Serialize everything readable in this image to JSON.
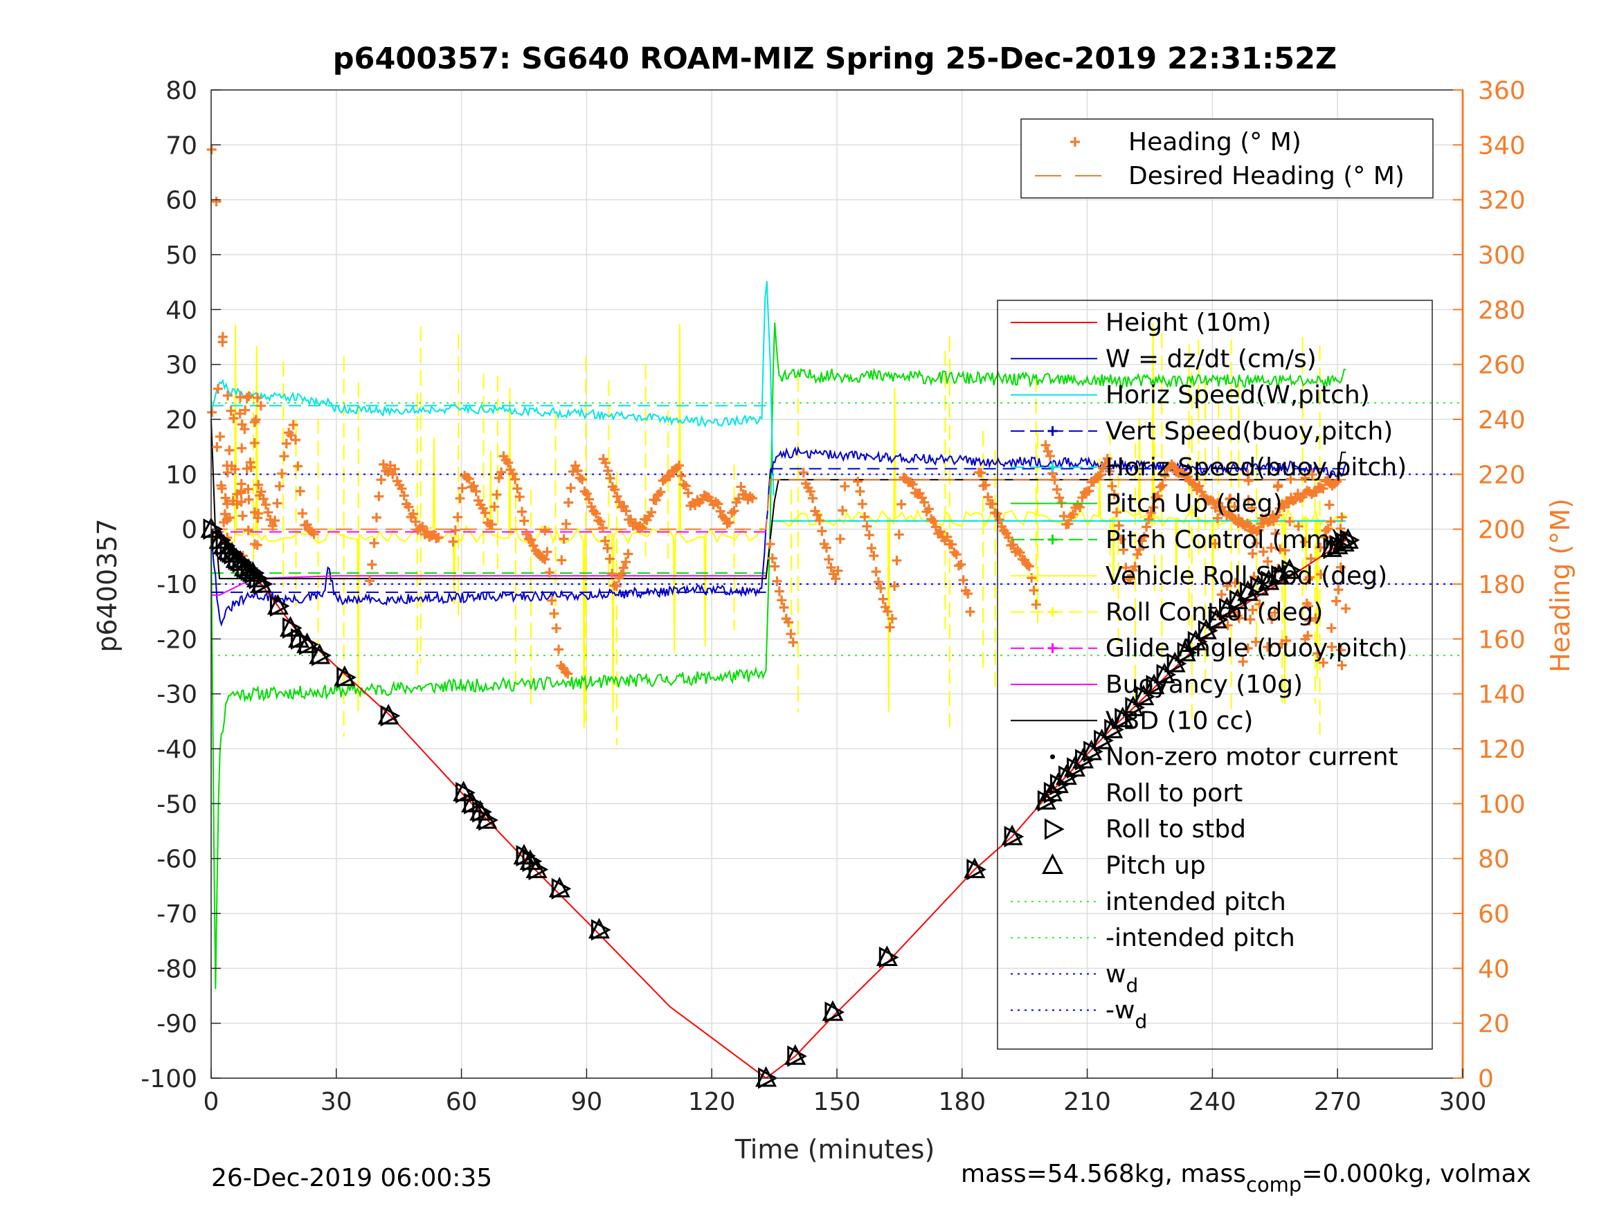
{
  "chart_data": {
    "type": "line",
    "title": "p6400357: SG640 ROAM-MIZ Spring 25-Dec-2019 22:31:52Z",
    "xlabel": "Time (minutes)",
    "ylabel_left": "p6400357",
    "ylabel_right": "Heading (°M)",
    "xlim": [
      0,
      300
    ],
    "ylim_left": [
      -100,
      80
    ],
    "ylim_right": [
      0,
      360
    ],
    "xticks": [
      0,
      30,
      60,
      90,
      120,
      150,
      180,
      210,
      240,
      270,
      300
    ],
    "yticks_left": [
      -100,
      -90,
      -80,
      -70,
      -60,
      -50,
      -40,
      -30,
      -20,
      -10,
      0,
      10,
      20,
      30,
      40,
      50,
      60,
      70,
      80
    ],
    "yticks_right": [
      0,
      20,
      40,
      60,
      80,
      100,
      120,
      140,
      160,
      180,
      200,
      220,
      240,
      260,
      280,
      300,
      320,
      340,
      360
    ],
    "grid": true,
    "footer_left": "26-Dec-2019 06:00:35",
    "footer_right": "mass=54.568kg, mass",
    "footer_right_sub": "comp",
    "footer_right_tail": "=0.000kg, volmax",
    "legend_heading": {
      "placement": "top-right",
      "entries": [
        "Heading (° M)",
        "Desired Heading (° M)"
      ]
    },
    "legend_main": {
      "placement": "right",
      "entries": [
        "Height (10m)",
        "W = dz/dt (cm/s)",
        "Horiz Speed(W,pitch)",
        "Vert Speed(buoy,pitch)",
        "Horiz Speed(buoy,pitch)",
        "Pitch Up (deg)",
        "Pitch Control (mm)",
        "Vehicle Roll Stbd (deg)",
        "Roll Control (deg)",
        "Glide Angle (buoy,pitch)",
        "Buoyancy (10g)",
        "VBD (10 cc)",
        "Non-zero motor current",
        "Roll to port",
        "Roll to stbd",
        "Pitch up",
        "intended pitch",
        "-intended pitch",
        "w",
        "-w"
      ],
      "subscript_d": "d"
    },
    "colors": {
      "height": "#ff0000",
      "w": "#0000cc",
      "horiz_w": "#00e5e5",
      "vert_buoy": "#0000cc",
      "horiz_buoy": "#00e5e5",
      "pitch": "#00dd00",
      "pitch_ctrl": "#00dd00",
      "roll": "#ffff00",
      "roll_ctrl": "#ffff00",
      "glide": "#ff00ff",
      "buoyancy": "#ff00ff",
      "vbd": "#000000",
      "heading": "#f57c2a",
      "intended_pitch": "#33ee33",
      "wd": "#0000ff"
    },
    "series": [
      {
        "name": "Height (10m)",
        "x": [
          0,
          5,
          12,
          20,
          30,
          43,
          60,
          75,
          92,
          110,
          133,
          140,
          150,
          162,
          183,
          192,
          200,
          215,
          230,
          245,
          260,
          272
        ],
        "y": [
          0,
          -4,
          -10,
          -18,
          -25,
          -34,
          -48,
          -60,
          -73,
          -87,
          -100,
          -96,
          -88,
          -79,
          -62,
          -56,
          -49,
          -37,
          -26,
          -15,
          -8,
          -2
        ]
      },
      {
        "name": "W = dz/dt (cm/s)",
        "x": [
          0,
          2,
          5,
          10,
          20,
          27,
          28,
          30,
          60,
          90,
          120,
          132,
          133,
          134,
          136,
          150,
          180,
          210,
          240,
          260,
          270,
          272
        ],
        "y": [
          0,
          -17,
          -14,
          -12,
          -13,
          -12,
          -7,
          -13,
          -12.5,
          -12,
          -11,
          -11.5,
          0,
          10,
          14,
          13.5,
          12.5,
          12,
          11,
          11.5,
          10,
          11
        ]
      },
      {
        "name": "Horiz Speed(W,pitch)",
        "x": [
          0,
          2,
          5,
          10,
          20,
          28,
          30,
          40,
          60,
          90,
          110,
          120,
          132,
          133,
          134,
          135
        ],
        "y": [
          22,
          27,
          25,
          24.5,
          24,
          23,
          22,
          21.5,
          22,
          21,
          20,
          19.5,
          20,
          48,
          30,
          0
        ]
      },
      {
        "name": "Pitch Up (deg)",
        "x": [
          0,
          1,
          2,
          4,
          10,
          30,
          60,
          90,
          120,
          133,
          134,
          135,
          136,
          150,
          180,
          210,
          240,
          270,
          272
        ],
        "y": [
          0,
          -85,
          -40,
          -30,
          -30,
          -29.5,
          -28.5,
          -28,
          -27,
          -26.5,
          0,
          40,
          28,
          28,
          27.5,
          27,
          27,
          27,
          29
        ]
      },
      {
        "name": "Buoyancy (10g)",
        "x": [
          0,
          2,
          10,
          30,
          60,
          90,
          120,
          133
        ],
        "y": [
          -12,
          -12,
          -9,
          -8.5,
          -8.5,
          -8.5,
          -8.5,
          -8.5
        ]
      },
      {
        "name": "VBD (10 cc)",
        "x": [
          0,
          1,
          2,
          133,
          135,
          136,
          270,
          271,
          272
        ],
        "y": [
          20,
          0,
          -9,
          -9,
          5,
          9,
          9,
          14,
          14
        ]
      },
      {
        "name": "intended pitch",
        "x": [
          0,
          300
        ],
        "y": [
          23,
          23
        ]
      },
      {
        "name": "-intended pitch",
        "x": [
          0,
          300
        ],
        "y": [
          -23,
          -23
        ]
      },
      {
        "name": "w_d",
        "x": [
          0,
          300
        ],
        "y": [
          10,
          10
        ]
      },
      {
        "name": "-w_d",
        "x": [
          0,
          300
        ],
        "y": [
          -10,
          -10
        ]
      },
      {
        "name": "Desired Heading (° M)",
        "axis": "right",
        "x": [
          0,
          133,
          134,
          272
        ],
        "y": [
          200,
          200,
          218,
          218
        ]
      }
    ],
    "heading_segments": [
      {
        "x": [
          12,
          15,
          18,
          20,
          22,
          25
        ],
        "y": [
          214,
          200,
          232,
          238,
          204,
          196
        ]
      },
      {
        "x": [
          38,
          41,
          44,
          47,
          50,
          55
        ],
        "y": [
          180,
          223,
          221,
          208,
          200,
          196
        ]
      },
      {
        "x": [
          58,
          61,
          64,
          67,
          70,
          73,
          76,
          80
        ],
        "y": [
          196,
          221,
          212,
          200,
          226,
          218,
          196,
          190
        ]
      },
      {
        "x": [
          80,
          82,
          84,
          86
        ],
        "y": [
          200,
          170,
          150,
          148
        ]
      },
      {
        "x": [
          84,
          87,
          90,
          94,
          97,
          100
        ],
        "y": [
          190,
          224,
          213,
          200,
          178,
          192
        ]
      },
      {
        "x": [
          94,
          97,
          100,
          103,
          106,
          109,
          112,
          115,
          118,
          121,
          124,
          127,
          130
        ],
        "y": [
          226,
          212,
          204,
          200,
          209,
          219,
          224,
          209,
          212,
          210,
          202,
          214,
          210
        ]
      },
      {
        "x": [
          134,
          136,
          138,
          140
        ],
        "y": [
          195,
          177,
          168,
          155
        ]
      },
      {
        "x": [
          142,
          145,
          148,
          150,
          152
        ],
        "y": [
          220,
          207,
          190,
          180,
          218
        ]
      },
      {
        "x": [
          155,
          158,
          160,
          163,
          166,
          170,
          174,
          178,
          180,
          182
        ],
        "y": [
          218,
          195,
          181,
          164,
          219,
          212,
          200,
          193,
          185,
          171
        ]
      },
      {
        "x": [
          184,
          187,
          190,
          193,
          196,
          198
        ],
        "y": [
          222,
          209,
          199,
          192,
          187,
          171
        ]
      },
      {
        "x": [
          200,
          205,
          210,
          215,
          220,
          225,
          230,
          240,
          250,
          260,
          270
        ],
        "y": [
          232,
          201,
          214,
          225,
          180,
          205,
          224,
          210,
          199,
          212,
          218
        ]
      }
    ],
    "triangle_markers": {
      "x": [
        0,
        2,
        3,
        4,
        5,
        6,
        7,
        8,
        9,
        10,
        11,
        12,
        16,
        19,
        21,
        23,
        26,
        32,
        42.5,
        60.5,
        62.5,
        64.5,
        66,
        75,
        76.5,
        78,
        83.5,
        93,
        133,
        140,
        149,
        162,
        183,
        192,
        200,
        201.5,
        203,
        205,
        207,
        209,
        211,
        213.5,
        216,
        218.5,
        221,
        223.5,
        226,
        228.5,
        231,
        233.5,
        236,
        238.5,
        241,
        243.5,
        246,
        248.5,
        251,
        253.5,
        256,
        258.5,
        268.5,
        270,
        271.5,
        272.5
      ],
      "y": [
        0,
        -2,
        -3,
        -4,
        -4.5,
        -5.5,
        -6,
        -7,
        -7.5,
        -8,
        -9,
        -10,
        -14,
        -18,
        -20,
        -21,
        -23,
        -27,
        -34,
        -48,
        -50,
        -51.5,
        -53,
        -59.5,
        -60.5,
        -62,
        -65.5,
        -73,
        -100,
        -96,
        -88,
        -78,
        -62,
        -56,
        -49.5,
        -48,
        -46.5,
        -45,
        -43.5,
        -42,
        -40.5,
        -38.5,
        -36.5,
        -34.5,
        -32.5,
        -30.5,
        -28.5,
        -26.5,
        -24.5,
        -22.5,
        -20.5,
        -18.5,
        -16.5,
        -14.5,
        -13,
        -11.5,
        -10.5,
        -9.5,
        -8.5,
        -7.5,
        -3.5,
        -3,
        -2.5,
        -2
      ]
    }
  }
}
